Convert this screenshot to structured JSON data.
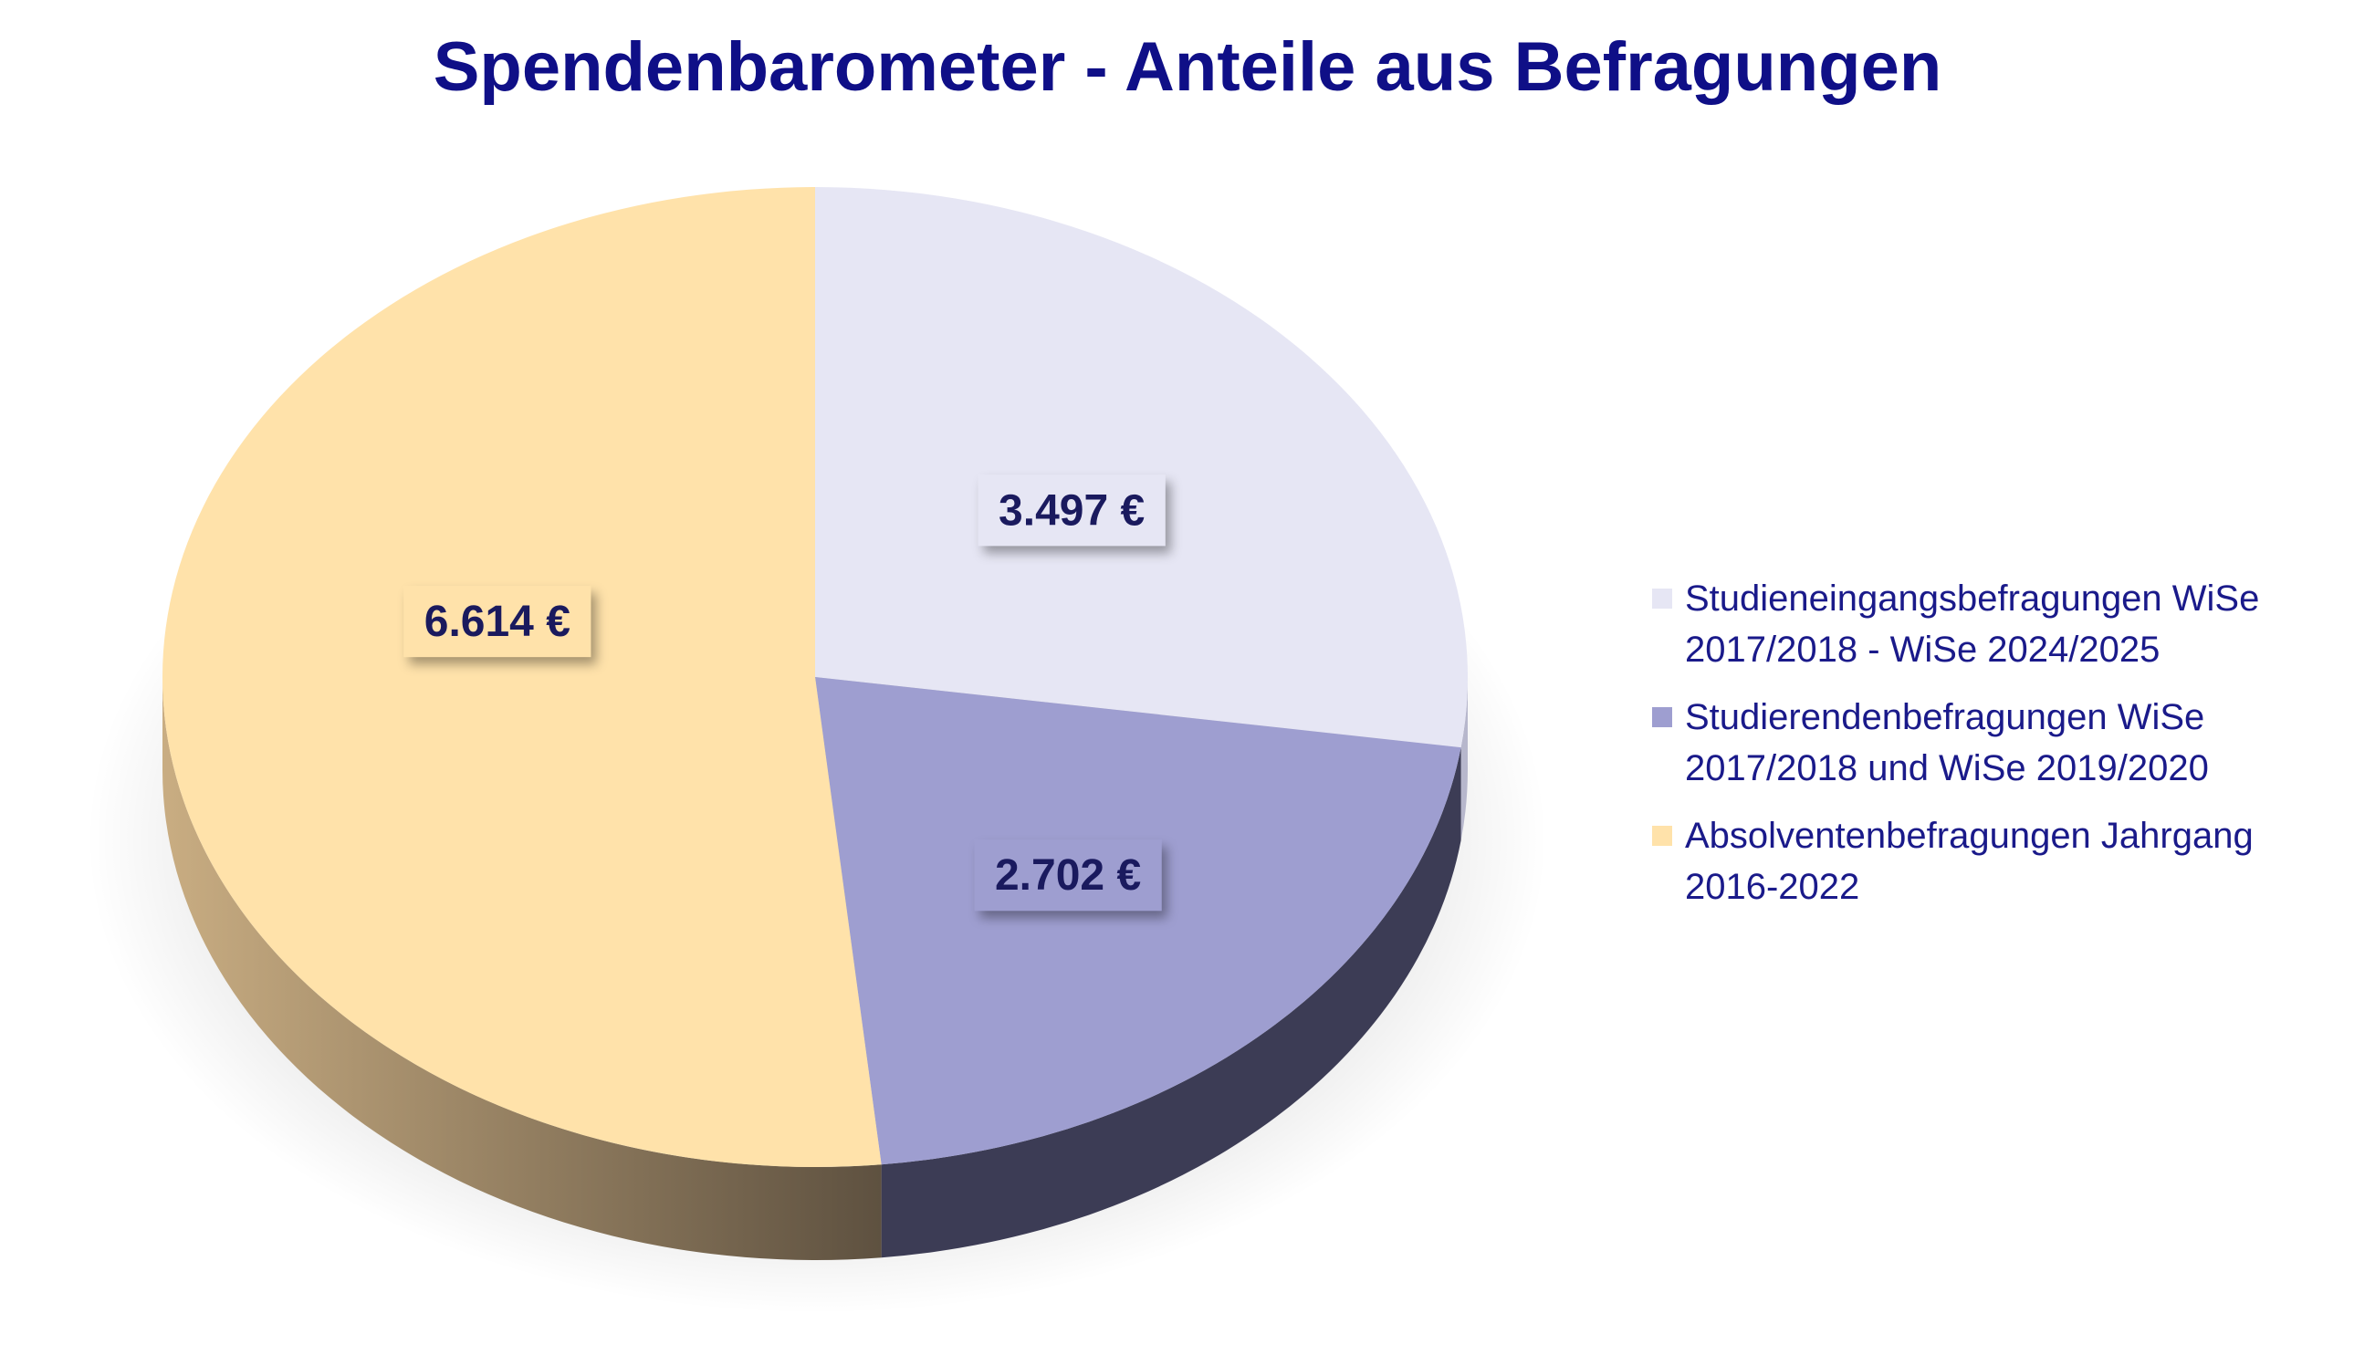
{
  "chart_data": {
    "type": "pie",
    "title": "Spendenbarometer - Anteile aus Befragungen",
    "categories": [
      "Studieneingangsbefragungen WiSe 2017/2018 - WiSe 2024/2025",
      "Studierendenbefragungen WiSe 2017/2018 und WiSe 2019/2020",
      "Absolventenbefragungen Jahrgang 2016-2022"
    ],
    "values": [
      3497,
      2702,
      6614
    ],
    "data_labels": [
      "3.497 €",
      "2.702 €",
      "6.614 €"
    ],
    "colors": [
      "#e6e6f4",
      "#9e9ed0",
      "#ffe2aa"
    ],
    "side_colors": [
      "#b7b7cc",
      "#3c3c55",
      "#8a7550"
    ],
    "label_color": "#1a1a5e",
    "legend_position": "right"
  },
  "legend": {
    "items": [
      {
        "line1": "Studieneingangsbefragungen WiSe",
        "line2": "2017/2018 - WiSe 2024/2025"
      },
      {
        "line1": "Studierendenbefragungen WiSe",
        "line2": "2017/2018 und WiSe 2019/2020"
      },
      {
        "line1": "Absolventenbefragungen Jahrgang",
        "line2": "2016-2022"
      }
    ]
  }
}
